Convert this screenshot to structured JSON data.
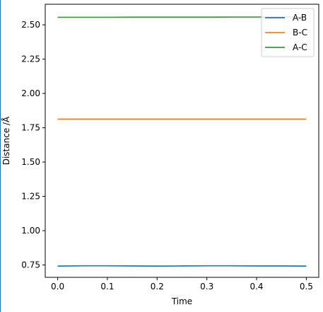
{
  "chart_data": {
    "type": "line",
    "title": "",
    "xlabel": "Time",
    "ylabel": "Distance /Å",
    "xlim": [
      -0.025,
      0.525
    ],
    "ylim": [
      0.66,
      2.65
    ],
    "xticks": [
      0.0,
      0.1,
      0.2,
      0.3,
      0.4,
      0.5
    ],
    "xtick_labels": [
      "0.0",
      "0.1",
      "0.2",
      "0.3",
      "0.4",
      "0.5"
    ],
    "yticks": [
      0.75,
      1.0,
      1.25,
      1.5,
      1.75,
      2.0,
      2.25,
      2.5
    ],
    "ytick_labels": [
      "0.75",
      "1.00",
      "1.25",
      "1.50",
      "1.75",
      "2.00",
      "2.25",
      "2.50"
    ],
    "grid": false,
    "legend_position": "top-right",
    "x": [
      0.0,
      0.05,
      0.1,
      0.15,
      0.2,
      0.25,
      0.3,
      0.35,
      0.4,
      0.45,
      0.5
    ],
    "series": [
      {
        "name": "A-B",
        "color": "#1f77b4",
        "values": [
          0.742,
          0.744,
          0.744,
          0.743,
          0.742,
          0.743,
          0.744,
          0.744,
          0.743,
          0.743,
          0.742
        ]
      },
      {
        "name": "B-C",
        "color": "#ff7f0e",
        "values": [
          1.813,
          1.813,
          1.813,
          1.813,
          1.813,
          1.813,
          1.813,
          1.813,
          1.813,
          1.813,
          1.813
        ]
      },
      {
        "name": "A-C",
        "color": "#2ca02c",
        "values": [
          2.555,
          2.555,
          2.555,
          2.556,
          2.556,
          2.556,
          2.556,
          2.557,
          2.557,
          2.557,
          2.558
        ]
      }
    ]
  }
}
